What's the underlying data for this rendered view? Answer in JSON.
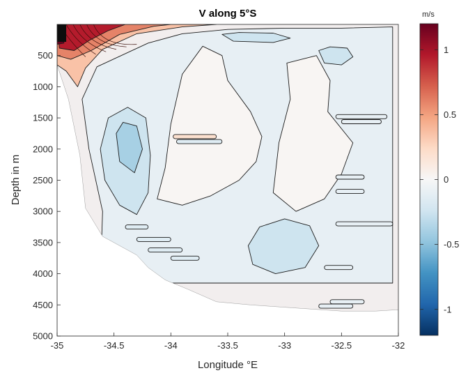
{
  "chart_data": {
    "type": "contour",
    "title": "V along 5°S",
    "xlabel": "Longitude °E",
    "ylabel": "Depth in m",
    "xlim": [
      -35,
      -32
    ],
    "ylim": [
      5000,
      0
    ],
    "y_reversed": true,
    "x_ticks": [
      -35,
      -34.5,
      -34,
      -33.5,
      -33,
      -32.5,
      -32
    ],
    "x_tick_labels": [
      "-35",
      "-34.5",
      "-34",
      "-33.5",
      "-33",
      "-32.5",
      "-32"
    ],
    "y_ticks": [
      500,
      1000,
      1500,
      2000,
      2500,
      3000,
      3500,
      4000,
      4500,
      5000
    ],
    "y_tick_labels": [
      "500",
      "1000",
      "1500",
      "2000",
      "2500",
      "3000",
      "3500",
      "4000",
      "4500",
      "5000"
    ],
    "colorbar": {
      "unit": "m/s",
      "range": [
        -1.2,
        1.2
      ],
      "ticks": [
        1,
        0.5,
        0,
        -0.5,
        -1
      ],
      "tick_labels": [
        "1",
        "0.5",
        "0",
        "-0.5",
        "-1"
      ],
      "colormap": [
        "#67001f",
        "#b2182b",
        "#d6604d",
        "#f4a582",
        "#fddbc7",
        "#f7f7f7",
        "#d1e5f0",
        "#92c5de",
        "#4393c3",
        "#2166ac",
        "#053061"
      ]
    },
    "colors": {
      "weak_positive": "#ece4e1",
      "near_zero": "#f2eeee",
      "weak_negative": "#dfe5ea",
      "moderate_negative": "#c7d9e2",
      "stronger_negative": "#a9c7d3",
      "strong_positive_core": "#8e2216"
    },
    "bottom_profile": [
      {
        "lon": -35.0,
        "depth": 650
      },
      {
        "lon": -34.9,
        "depth": 1200
      },
      {
        "lon": -34.8,
        "depth": 2100
      },
      {
        "lon": -34.75,
        "depth": 2950
      },
      {
        "lon": -34.6,
        "depth": 3400
      },
      {
        "lon": -34.45,
        "depth": 3550
      },
      {
        "lon": -34.3,
        "depth": 3700
      },
      {
        "lon": -34.2,
        "depth": 3900
      },
      {
        "lon": -34.05,
        "depth": 4100
      },
      {
        "lon": -33.85,
        "depth": 4250
      },
      {
        "lon": -33.6,
        "depth": 4450
      },
      {
        "lon": -33.3,
        "depth": 4500
      },
      {
        "lon": -32.9,
        "depth": 4550
      },
      {
        "lon": -32.5,
        "depth": 4600
      },
      {
        "lon": -32.2,
        "depth": 4600
      },
      {
        "lon": -32.03,
        "depth": 4580
      }
    ],
    "regions": [
      {
        "name": "broad-southward-flow",
        "value": -0.1,
        "polygon": [
          [
            -34.62,
            4100
          ],
          [
            -34.6,
            3000
          ],
          [
            -34.72,
            2000
          ],
          [
            -34.78,
            1200
          ],
          [
            -34.65,
            680
          ],
          [
            -34.2,
            300
          ],
          [
            -33.9,
            150
          ],
          [
            -33.5,
            80
          ],
          [
            -33.0,
            60
          ],
          [
            -32.5,
            60
          ],
          [
            -32.05,
            40
          ],
          [
            -32.05,
            4150
          ],
          [
            -33.0,
            4150
          ],
          [
            -34.0,
            4150
          ]
        ]
      },
      {
        "name": "central-weak-flow-tongue",
        "value": 0.02,
        "polygon": [
          [
            -34.12,
            2800
          ],
          [
            -34.05,
            2300
          ],
          [
            -34.0,
            1600
          ],
          [
            -33.9,
            800
          ],
          [
            -33.72,
            350
          ],
          [
            -33.55,
            500
          ],
          [
            -33.5,
            900
          ],
          [
            -33.3,
            1400
          ],
          [
            -33.2,
            1800
          ],
          [
            -33.25,
            2200
          ],
          [
            -33.4,
            2500
          ],
          [
            -33.65,
            2750
          ],
          [
            -33.9,
            2900
          ]
        ]
      },
      {
        "name": "eastern-weak-flow",
        "value": 0.02,
        "polygon": [
          [
            -32.98,
            620
          ],
          [
            -32.72,
            500
          ],
          [
            -32.6,
            900
          ],
          [
            -32.62,
            1400
          ],
          [
            -32.4,
            1900
          ],
          [
            -32.5,
            2400
          ],
          [
            -32.65,
            2800
          ],
          [
            -32.9,
            3000
          ],
          [
            -33.1,
            2700
          ],
          [
            -33.05,
            1900
          ],
          [
            -32.95,
            1200
          ]
        ]
      },
      {
        "name": "deep-core-minus-0.2",
        "value": -0.25,
        "polygon": [
          [
            -33.32,
            3550
          ],
          [
            -33.22,
            3250
          ],
          [
            -33.0,
            3120
          ],
          [
            -32.78,
            3230
          ],
          [
            -32.7,
            3550
          ],
          [
            -32.82,
            3900
          ],
          [
            -33.08,
            4000
          ],
          [
            -33.28,
            3850
          ]
        ]
      },
      {
        "name": "mid-depth-core-minus-0.2",
        "value": -0.25,
        "polygon": [
          [
            -34.62,
            2000
          ],
          [
            -34.55,
            1500
          ],
          [
            -34.38,
            1330
          ],
          [
            -34.22,
            1500
          ],
          [
            -34.18,
            2100
          ],
          [
            -34.2,
            2700
          ],
          [
            -34.3,
            3050
          ],
          [
            -34.45,
            2900
          ],
          [
            -34.58,
            2500
          ]
        ]
      },
      {
        "name": "mid-depth-core-minus-0.4",
        "value": -0.4,
        "polygon": [
          [
            -34.48,
            1750
          ],
          [
            -34.42,
            1570
          ],
          [
            -34.3,
            1630
          ],
          [
            -34.25,
            2000
          ],
          [
            -34.32,
            2380
          ],
          [
            -34.45,
            2200
          ]
        ]
      },
      {
        "name": "shallow-eastern-eddy",
        "value": -0.25,
        "polygon": [
          [
            -32.7,
            420
          ],
          [
            -32.6,
            360
          ],
          [
            -32.45,
            380
          ],
          [
            -32.4,
            520
          ],
          [
            -32.5,
            650
          ],
          [
            -32.65,
            620
          ]
        ]
      },
      {
        "name": "upper-core-minus-0.2",
        "value": -0.25,
        "polygon": [
          [
            -33.55,
            160
          ],
          [
            -33.4,
            130
          ],
          [
            -33.1,
            140
          ],
          [
            -32.95,
            220
          ],
          [
            -33.1,
            290
          ],
          [
            -33.45,
            270
          ]
        ]
      },
      {
        "name": "northward-boundary-current",
        "value": 0.35,
        "polygon": [
          [
            -35.0,
            0
          ],
          [
            -35.0,
            650
          ],
          [
            -34.92,
            750
          ],
          [
            -34.82,
            1000
          ],
          [
            -34.75,
            700
          ],
          [
            -34.6,
            400
          ],
          [
            -34.3,
            150
          ],
          [
            -33.9,
            40
          ],
          [
            -33.6,
            0
          ]
        ]
      },
      {
        "name": "boundary-current-0.6",
        "value": 0.6,
        "polygon": [
          [
            -35.0,
            0
          ],
          [
            -35.0,
            500
          ],
          [
            -34.88,
            560
          ],
          [
            -34.7,
            420
          ],
          [
            -34.45,
            160
          ],
          [
            -34.15,
            30
          ],
          [
            -34.0,
            0
          ]
        ]
      },
      {
        "name": "boundary-current-core",
        "value": 0.95,
        "polygon": [
          [
            -35.0,
            0
          ],
          [
            -34.98,
            380
          ],
          [
            -34.85,
            420
          ],
          [
            -34.72,
            260
          ],
          [
            -34.55,
            100
          ],
          [
            -34.4,
            0
          ]
        ]
      },
      {
        "name": "boundary-current-max",
        "value": 1.2,
        "polygon": [
          [
            -35.0,
            0
          ],
          [
            -35.0,
            320
          ],
          [
            -34.94,
            300
          ],
          [
            -34.95,
            60
          ]
        ]
      }
    ],
    "streaks": [
      {
        "lon": [
          -33.98,
          -33.6
        ],
        "depth": 1800,
        "value": 0.2
      },
      {
        "lon": [
          -33.95,
          -33.55
        ],
        "depth": 1880,
        "value": -0.15
      },
      {
        "lon": [
          -34.4,
          -34.2
        ],
        "depth": 3250,
        "value": -0.15
      },
      {
        "lon": [
          -34.3,
          -34.0
        ],
        "depth": 3450,
        "value": -0.15
      },
      {
        "lon": [
          -34.2,
          -33.9
        ],
        "depth": 3620,
        "value": -0.15
      },
      {
        "lon": [
          -34.0,
          -33.75
        ],
        "depth": 3750,
        "value": -0.15
      },
      {
        "lon": [
          -32.55,
          -32.05
        ],
        "depth": 3200,
        "value": -0.1
      },
      {
        "lon": [
          -32.55,
          -32.1
        ],
        "depth": 1480,
        "value": -0.1
      },
      {
        "lon": [
          -32.5,
          -32.15
        ],
        "depth": 1560,
        "value": -0.1
      },
      {
        "lon": [
          -32.55,
          -32.3
        ],
        "depth": 2450,
        "value": -0.1
      },
      {
        "lon": [
          -32.55,
          -32.3
        ],
        "depth": 2680,
        "value": -0.1
      },
      {
        "lon": [
          -32.65,
          -32.4
        ],
        "depth": 3900,
        "value": -0.1
      },
      {
        "lon": [
          -32.6,
          -32.3
        ],
        "depth": 4450,
        "value": -0.1
      },
      {
        "lon": [
          -32.7,
          -32.4
        ],
        "depth": 4520,
        "value": -0.1
      }
    ]
  }
}
